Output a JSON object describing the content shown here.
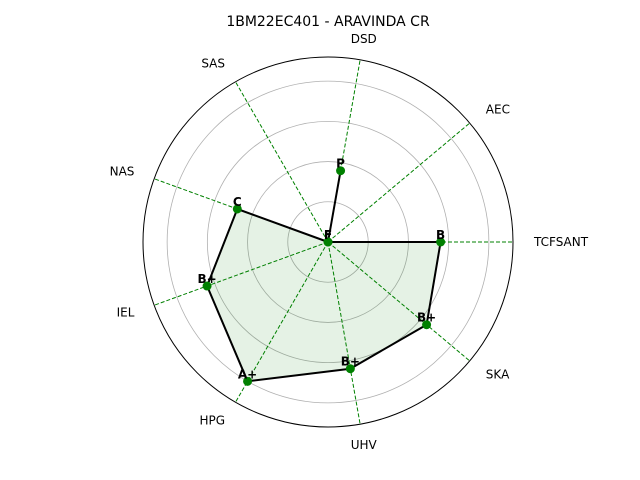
{
  "chart_data": {
    "type": "radar",
    "title": "1BM22EC401 - ARAVINDA CR",
    "categories": [
      "TCFSANT",
      "AEC",
      "DSD",
      "SAS",
      "NAS",
      "IEL",
      "HPG",
      "UHV",
      "SKA"
    ],
    "angles_deg": [
      0,
      40,
      80,
      120,
      160,
      200,
      240,
      280,
      320
    ],
    "values": [
      7,
      0,
      4.5,
      0,
      6,
      8,
      10,
      8,
      8
    ],
    "grades": [
      "B",
      "F",
      "P",
      "F",
      "C",
      "B+",
      "A+",
      "B+",
      "B+"
    ],
    "rmax": 11.5,
    "grid_rings": [
      2.5,
      5,
      7.5,
      10
    ],
    "colors": {
      "line": "#000000",
      "fill": "#008000",
      "markers": "#008000",
      "spokes": "#008000",
      "grid": "#b0b0b0"
    }
  }
}
